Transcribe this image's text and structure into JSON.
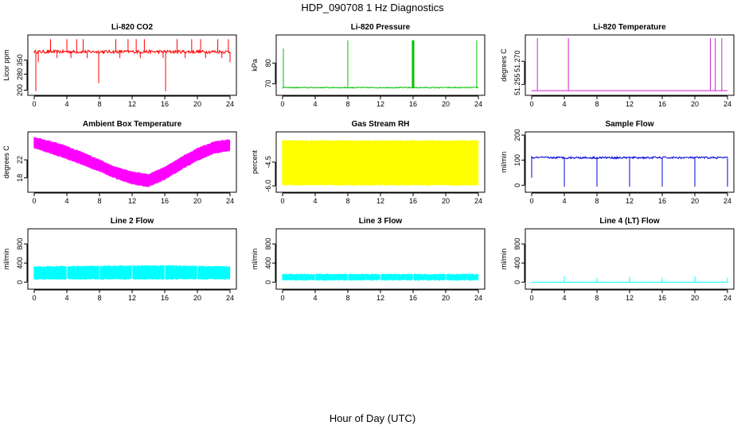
{
  "figure": {
    "title": "HDP_090708  1 Hz Diagnostics",
    "xlabel": "Hour of Day (UTC)"
  },
  "chart_data": [
    {
      "type": "line",
      "title": "Li-820 CO2",
      "ylabel": "Licor ppm",
      "color": "#ff0000",
      "xlim": [
        0,
        24
      ],
      "ylim": [
        190,
        460
      ],
      "xticks": [
        "0",
        "4",
        "8",
        "12",
        "16",
        "20",
        "24"
      ],
      "yticks": [
        "200",
        "280",
        "350"
      ],
      "pattern": "baseline_spikes",
      "baseline": 392,
      "noise": 8,
      "spikes_up": [
        [
          2,
          455
        ],
        [
          4,
          455
        ],
        [
          5.2,
          455
        ],
        [
          6,
          455
        ],
        [
          10,
          455
        ],
        [
          11.5,
          455
        ],
        [
          12.5,
          455
        ],
        [
          13.5,
          455
        ],
        [
          17.5,
          455
        ],
        [
          19.3,
          455
        ],
        [
          20.4,
          455
        ],
        [
          22.5,
          455
        ],
        [
          23.8,
          455
        ]
      ],
      "spikes_down": [
        [
          0.2,
          195
        ],
        [
          0.5,
          340
        ],
        [
          2.8,
          360
        ],
        [
          4.5,
          360
        ],
        [
          6.5,
          360
        ],
        [
          7.9,
          235
        ],
        [
          10.5,
          360
        ],
        [
          13,
          360
        ],
        [
          15.8,
          360
        ],
        [
          16.1,
          195
        ],
        [
          18.5,
          360
        ],
        [
          21,
          360
        ],
        [
          23,
          360
        ],
        [
          24,
          340
        ]
      ]
    },
    {
      "type": "line",
      "title": "Li-820 Pressure",
      "ylabel": "kPa",
      "color": "#00c000",
      "xlim": [
        0,
        24
      ],
      "ylim": [
        66,
        92
      ],
      "xticks": [
        "0",
        "4",
        "8",
        "12",
        "16",
        "20",
        "24"
      ],
      "yticks": [
        "70",
        "80"
      ],
      "pattern": "baseline_spikes",
      "baseline": 68.2,
      "noise": 0.25,
      "spikes_up": [
        [
          0.1,
          87
        ],
        [
          8,
          91
        ],
        [
          15.9,
          91
        ],
        [
          16,
          91
        ],
        [
          16.1,
          91
        ],
        [
          23.8,
          91
        ]
      ],
      "spikes_down": []
    },
    {
      "type": "line",
      "title": "Li-820 Temperature",
      "ylabel": "degrees C",
      "color": "#d020d0",
      "xlim": [
        0,
        24
      ],
      "ylim": [
        51.25,
        51.285
      ],
      "xticks": [
        "0",
        "4",
        "8",
        "12",
        "16",
        "20",
        "24"
      ],
      "yticks": [
        "51.255",
        "51.270"
      ],
      "pattern": "baseline_spikes",
      "baseline": 51.251,
      "noise": 0,
      "spikes_up": [
        [
          0.7,
          51.285
        ],
        [
          4.5,
          51.285
        ],
        [
          21.9,
          51.285
        ],
        [
          22.5,
          51.285
        ],
        [
          23.3,
          51.285
        ]
      ],
      "spikes_down": []
    },
    {
      "type": "area",
      "title": "Ambient Box Temperature",
      "ylabel": "degrees C",
      "color": "#ff00ff",
      "xlim": [
        0,
        24
      ],
      "ylim": [
        15.5,
        27.5
      ],
      "xticks": [
        "0",
        "4",
        "8",
        "12",
        "16",
        "20",
        "24"
      ],
      "yticks": [
        "18",
        "22"
      ],
      "pattern": "band",
      "upper": [
        [
          0,
          26.8
        ],
        [
          2,
          26.0
        ],
        [
          4,
          24.8
        ],
        [
          6,
          23.4
        ],
        [
          8,
          21.8
        ],
        [
          10,
          20.2
        ],
        [
          12,
          19.2
        ],
        [
          14,
          18.6
        ],
        [
          16,
          20.2
        ],
        [
          18,
          22.4
        ],
        [
          20,
          24.4
        ],
        [
          22,
          25.8
        ],
        [
          24,
          26.4
        ]
      ],
      "lower": [
        [
          0,
          24.8
        ],
        [
          2,
          23.6
        ],
        [
          4,
          22.4
        ],
        [
          6,
          21.0
        ],
        [
          8,
          19.6
        ],
        [
          10,
          18.0
        ],
        [
          12,
          16.8
        ],
        [
          14,
          16.2
        ],
        [
          16,
          17.8
        ],
        [
          18,
          20.0
        ],
        [
          20,
          22.0
        ],
        [
          22,
          23.6
        ],
        [
          24,
          24.2
        ]
      ]
    },
    {
      "type": "area",
      "title": "Gas Stream RH",
      "ylabel": "percent",
      "color": "#ffff00",
      "xlim": [
        0,
        24
      ],
      "ylim": [
        -6.2,
        -2.8
      ],
      "xticks": [
        "0",
        "4",
        "8",
        "12",
        "16",
        "20",
        "24"
      ],
      "yticks": [
        "-6.0",
        "-4.5"
      ],
      "pattern": "band",
      "upper": [
        [
          0,
          -3.2
        ],
        [
          24,
          -3.2
        ]
      ],
      "lower": [
        [
          0,
          -5.9
        ],
        [
          24,
          -5.9
        ]
      ]
    },
    {
      "type": "line",
      "title": "Sample Flow",
      "ylabel": "ml/min",
      "color": "#0000dd",
      "xlim": [
        0,
        24
      ],
      "ylim": [
        -15,
        200
      ],
      "xticks": [
        "0",
        "4",
        "8",
        "12",
        "16",
        "20",
        "24"
      ],
      "yticks": [
        "0",
        "100",
        "200"
      ],
      "pattern": "baseline_spikes",
      "baseline": 110,
      "noise": 4,
      "spikes_up": [],
      "spikes_down": [
        [
          0,
          30
        ],
        [
          4,
          -5
        ],
        [
          8,
          -5
        ],
        [
          12,
          -5
        ],
        [
          16,
          -5
        ],
        [
          20,
          -5
        ],
        [
          24,
          -5
        ]
      ]
    },
    {
      "type": "area",
      "title": "Line 2 Flow",
      "ylabel": "ml/min",
      "color": "#00ffff",
      "xlim": [
        0,
        24
      ],
      "ylim": [
        -80,
        1050
      ],
      "xticks": [
        "0",
        "4",
        "8",
        "12",
        "16",
        "20",
        "24"
      ],
      "yticks": [
        "0",
        "400",
        "800"
      ],
      "pattern": "band",
      "upper": [
        [
          0,
          310
        ],
        [
          4,
          315
        ],
        [
          8,
          320
        ],
        [
          12,
          325
        ],
        [
          16,
          330
        ],
        [
          20,
          320
        ],
        [
          24,
          310
        ]
      ],
      "lower": [
        [
          0,
          80
        ],
        [
          24,
          80
        ]
      ],
      "gaps": [
        4,
        8,
        12,
        16,
        20
      ]
    },
    {
      "type": "area",
      "title": "Line 3 Flow",
      "ylabel": "ml/min",
      "color": "#00ffff",
      "xlim": [
        0,
        24
      ],
      "ylim": [
        -80,
        1050
      ],
      "xticks": [
        "0",
        "4",
        "8",
        "12",
        "16",
        "20",
        "24"
      ],
      "yticks": [
        "0",
        "400",
        "800"
      ],
      "pattern": "band",
      "upper": [
        [
          0,
          150
        ],
        [
          24,
          150
        ]
      ],
      "lower": [
        [
          0,
          60
        ],
        [
          24,
          60
        ]
      ],
      "gaps": [
        4,
        8,
        12,
        16,
        20
      ]
    },
    {
      "type": "line",
      "title": "Line 4 (LT) Flow",
      "ylabel": "ml/min",
      "color": "#00ffff",
      "xlim": [
        0,
        24
      ],
      "ylim": [
        -80,
        1050
      ],
      "xticks": [
        "0",
        "4",
        "8",
        "12",
        "16",
        "20",
        "24"
      ],
      "yticks": [
        "0",
        "400",
        "800"
      ],
      "pattern": "baseline_spikes",
      "baseline": 0,
      "noise": 4,
      "spikes_up": [
        [
          4,
          120
        ],
        [
          8,
          90
        ],
        [
          12,
          110
        ],
        [
          16,
          90
        ],
        [
          20,
          120
        ],
        [
          24,
          90
        ]
      ],
      "spikes_down": []
    }
  ]
}
